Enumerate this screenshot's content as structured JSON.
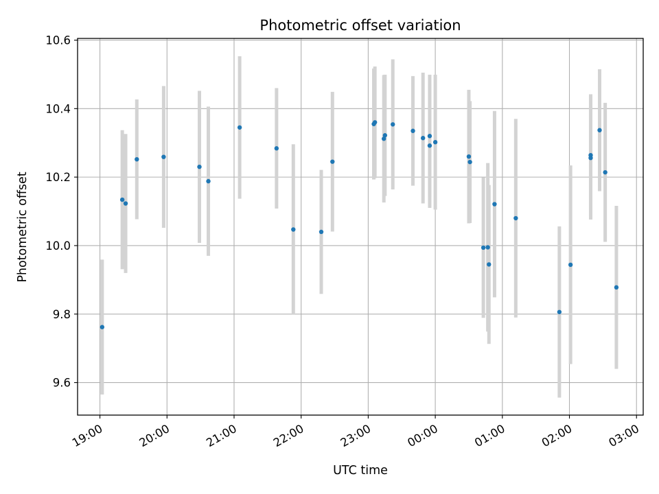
{
  "chart_data": {
    "type": "scatter",
    "title": "Photometric offset variation",
    "xlabel": "UTC time",
    "ylabel": "Photometric offset",
    "x_ticks": [
      "19:00",
      "20:00",
      "21:00",
      "22:00",
      "23:00",
      "00:00",
      "01:00",
      "02:00",
      "03:00"
    ],
    "y_ticks": [
      "9.6",
      "9.8",
      "10.0",
      "10.2",
      "10.4",
      "10.6"
    ],
    "xlim": [
      "18:40",
      "03:06"
    ],
    "ylim": [
      9.505,
      10.605
    ],
    "grid": true,
    "colors": {
      "point": "#1f77b4",
      "errorbar": "#d3d3d3",
      "grid": "#b0b0b0"
    },
    "series": [
      {
        "points": [
          {
            "t": "19:02",
            "y": 9.762,
            "err": 0.197
          },
          {
            "t": "19:20",
            "y": 10.134,
            "err": 0.203
          },
          {
            "t": "19:23",
            "y": 10.123,
            "err": 0.203
          },
          {
            "t": "19:33",
            "y": 10.252,
            "err": 0.175
          },
          {
            "t": "19:57",
            "y": 10.259,
            "err": 0.207
          },
          {
            "t": "20:29",
            "y": 10.23,
            "err": 0.222
          },
          {
            "t": "20:37",
            "y": 10.188,
            "err": 0.218
          },
          {
            "t": "21:05",
            "y": 10.345,
            "err": 0.208
          },
          {
            "t": "21:38",
            "y": 10.284,
            "err": 0.176
          },
          {
            "t": "21:53",
            "y": 10.047,
            "err": 0.249
          },
          {
            "t": "22:18",
            "y": 10.04,
            "err": 0.181
          },
          {
            "t": "22:28",
            "y": 10.245,
            "err": 0.204
          },
          {
            "t": "23:05",
            "y": 10.355,
            "err": 0.162
          },
          {
            "t": "23:06",
            "y": 10.36,
            "err": 0.163
          },
          {
            "t": "23:14",
            "y": 10.312,
            "err": 0.186
          },
          {
            "t": "23:15",
            "y": 10.322,
            "err": 0.177
          },
          {
            "t": "23:22",
            "y": 10.354,
            "err": 0.19
          },
          {
            "t": "23:40",
            "y": 10.335,
            "err": 0.16
          },
          {
            "t": "23:49",
            "y": 10.314,
            "err": 0.191
          },
          {
            "t": "23:55",
            "y": 10.292,
            "err": 0.182
          },
          {
            "t": "23:55",
            "y": 10.32,
            "err": 0.179
          },
          {
            "t": "24:00",
            "y": 10.302,
            "err": 0.197
          },
          {
            "t": "24:30",
            "y": 10.26,
            "err": 0.195
          },
          {
            "t": "24:31",
            "y": 10.244,
            "err": 0.178
          },
          {
            "t": "24:43",
            "y": 9.994,
            "err": 0.205
          },
          {
            "t": "24:47",
            "y": 9.995,
            "err": 0.246
          },
          {
            "t": "24:48",
            "y": 9.945,
            "err": 0.232
          },
          {
            "t": "24:53",
            "y": 10.121,
            "err": 0.272
          },
          {
            "t": "25:12",
            "y": 10.08,
            "err": 0.29
          },
          {
            "t": "25:51",
            "y": 9.806,
            "err": 0.25
          },
          {
            "t": "26:01",
            "y": 9.944,
            "err": 0.29
          },
          {
            "t": "26:19",
            "y": 10.264,
            "err": 0.178
          },
          {
            "t": "26:19",
            "y": 10.256,
            "err": 0.18
          },
          {
            "t": "26:27",
            "y": 10.337,
            "err": 0.178
          },
          {
            "t": "26:32",
            "y": 10.214,
            "err": 0.203
          },
          {
            "t": "26:42",
            "y": 9.878,
            "err": 0.238
          }
        ]
      }
    ]
  }
}
